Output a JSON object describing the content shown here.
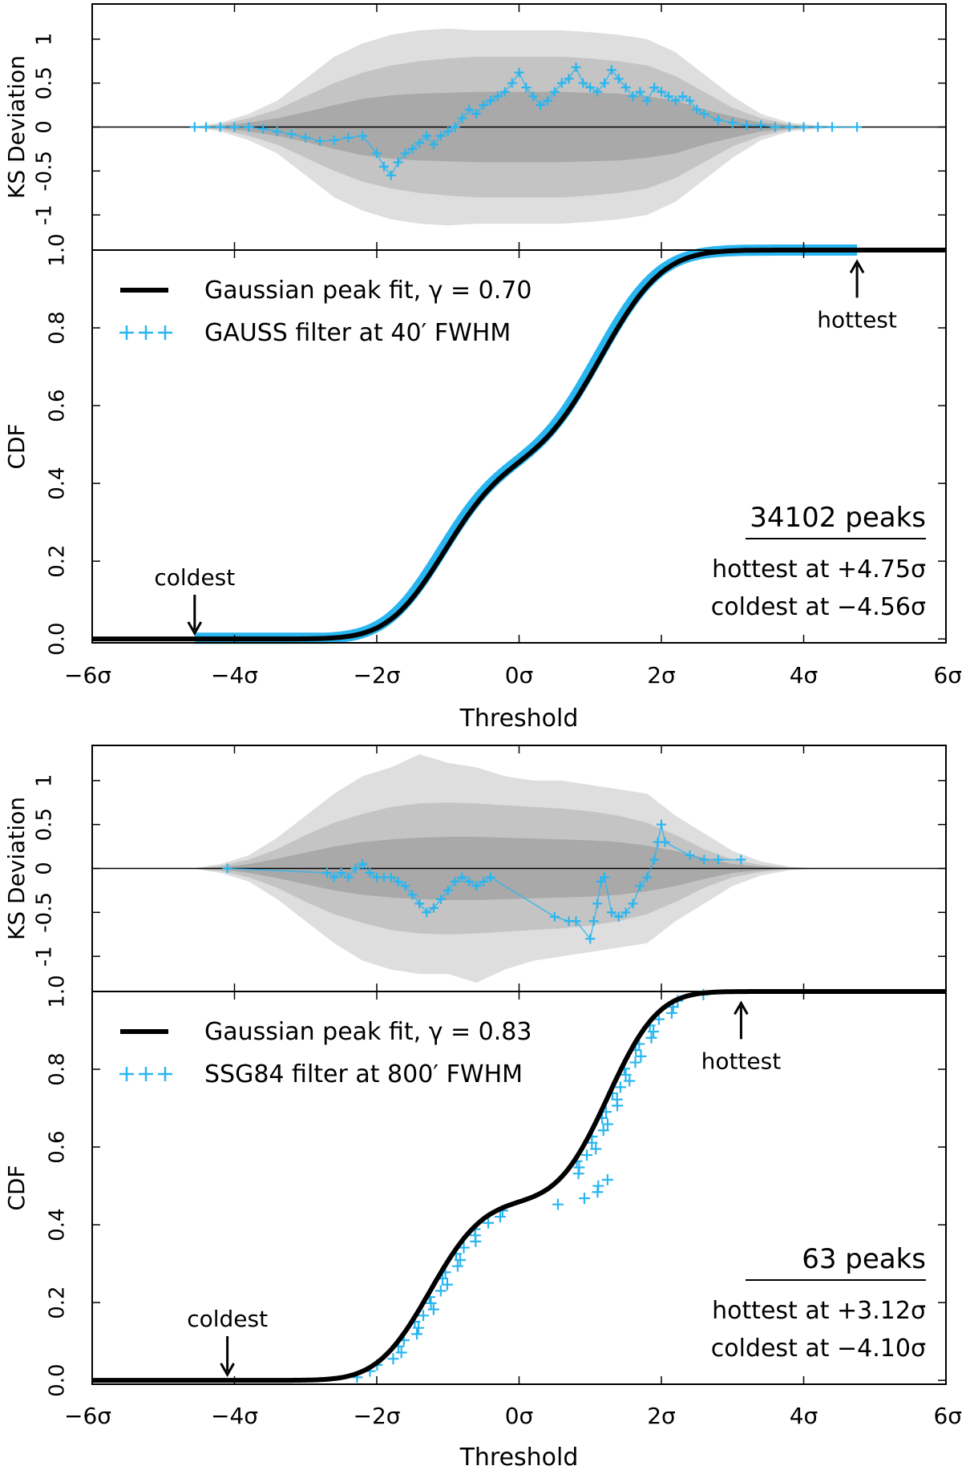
{
  "figure": {
    "colors": {
      "data": "#29b6f0",
      "fit": "#000000",
      "band_inner": "#a9a9a9",
      "band_mid": "#c4c4c4",
      "band_outer": "#dedede",
      "axis": "#000000"
    }
  },
  "chart_data": [
    {
      "type": "line",
      "panel": "top",
      "xlabel": "Threshold",
      "x_ticks": [
        "−6σ",
        "−4σ",
        "−2σ",
        "0σ",
        "2σ",
        "4σ",
        "6σ"
      ],
      "x_tick_values": [
        -6,
        -4,
        -2,
        0,
        2,
        4,
        6
      ],
      "xlim": [
        -6,
        6
      ],
      "ks": {
        "ylabel": "KS Deviation",
        "y_ticks": [
          "-1",
          "-0.5",
          "0",
          "0.5",
          "1"
        ],
        "y_tick_values": [
          -1,
          -0.5,
          0,
          0.5,
          1
        ],
        "ylim": [
          -1.4,
          1.4
        ],
        "bands_x": [
          -4.6,
          -4.2,
          -3.8,
          -3.4,
          -3.0,
          -2.6,
          -2.2,
          -1.8,
          -1.4,
          -1.0,
          -0.6,
          -0.2,
          0.2,
          0.6,
          1.0,
          1.4,
          1.8,
          2.2,
          2.6,
          3.0,
          3.4,
          3.8,
          4.2,
          4.6
        ],
        "band_outer_upper": [
          0.0,
          0.05,
          0.15,
          0.3,
          0.55,
          0.8,
          0.95,
          1.05,
          1.1,
          1.12,
          1.1,
          1.1,
          1.1,
          1.1,
          1.08,
          1.05,
          1.0,
          0.85,
          0.6,
          0.35,
          0.15,
          0.05,
          0.02,
          0.0
        ],
        "band_outer_lower": [
          0.0,
          -0.05,
          -0.15,
          -0.3,
          -0.55,
          -0.8,
          -0.95,
          -1.05,
          -1.1,
          -1.12,
          -1.1,
          -1.1,
          -1.1,
          -1.1,
          -1.08,
          -1.05,
          -1.0,
          -0.85,
          -0.6,
          -0.35,
          -0.15,
          -0.05,
          -0.02,
          0.0
        ],
        "band_mid_upper": [
          0.0,
          0.03,
          0.1,
          0.2,
          0.35,
          0.5,
          0.62,
          0.7,
          0.75,
          0.78,
          0.8,
          0.8,
          0.8,
          0.8,
          0.78,
          0.75,
          0.7,
          0.58,
          0.4,
          0.22,
          0.1,
          0.03,
          0.01,
          0.0
        ],
        "band_mid_lower": [
          0.0,
          -0.03,
          -0.1,
          -0.2,
          -0.35,
          -0.5,
          -0.62,
          -0.7,
          -0.75,
          -0.78,
          -0.8,
          -0.8,
          -0.8,
          -0.8,
          -0.78,
          -0.75,
          -0.7,
          -0.58,
          -0.4,
          -0.22,
          -0.1,
          -0.03,
          -0.01,
          0.0
        ],
        "band_inner_upper": [
          0.0,
          0.01,
          0.05,
          0.1,
          0.17,
          0.25,
          0.32,
          0.36,
          0.38,
          0.39,
          0.4,
          0.4,
          0.4,
          0.4,
          0.39,
          0.38,
          0.35,
          0.3,
          0.2,
          0.12,
          0.05,
          0.02,
          0.0,
          0.0
        ],
        "band_inner_lower": [
          0.0,
          -0.01,
          -0.05,
          -0.1,
          -0.17,
          -0.25,
          -0.32,
          -0.36,
          -0.38,
          -0.39,
          -0.4,
          -0.4,
          -0.4,
          -0.4,
          -0.39,
          -0.38,
          -0.35,
          -0.3,
          -0.2,
          -0.12,
          -0.05,
          -0.02,
          0.0,
          0.0
        ],
        "data_x": [
          -4.56,
          -4.4,
          -4.2,
          -4.0,
          -3.8,
          -3.6,
          -3.4,
          -3.2,
          -3.0,
          -2.8,
          -2.6,
          -2.4,
          -2.2,
          -2.0,
          -1.9,
          -1.8,
          -1.7,
          -1.6,
          -1.5,
          -1.4,
          -1.3,
          -1.2,
          -1.1,
          -1.0,
          -0.9,
          -0.8,
          -0.7,
          -0.6,
          -0.5,
          -0.4,
          -0.3,
          -0.2,
          -0.1,
          0.0,
          0.1,
          0.2,
          0.3,
          0.4,
          0.5,
          0.6,
          0.7,
          0.8,
          0.9,
          1.0,
          1.1,
          1.2,
          1.3,
          1.4,
          1.5,
          1.6,
          1.7,
          1.8,
          1.9,
          2.0,
          2.1,
          2.2,
          2.3,
          2.4,
          2.5,
          2.6,
          2.8,
          3.0,
          3.2,
          3.4,
          3.6,
          3.8,
          4.0,
          4.2,
          4.4,
          4.75
        ],
        "data_y": [
          0.0,
          0.0,
          0.0,
          0.0,
          0.0,
          -0.02,
          -0.05,
          -0.08,
          -0.12,
          -0.16,
          -0.15,
          -0.12,
          -0.1,
          -0.3,
          -0.45,
          -0.55,
          -0.4,
          -0.3,
          -0.25,
          -0.18,
          -0.1,
          -0.2,
          -0.1,
          -0.05,
          0.0,
          0.1,
          0.2,
          0.15,
          0.25,
          0.3,
          0.35,
          0.4,
          0.5,
          0.62,
          0.45,
          0.35,
          0.25,
          0.3,
          0.4,
          0.5,
          0.55,
          0.68,
          0.5,
          0.45,
          0.4,
          0.5,
          0.65,
          0.55,
          0.45,
          0.35,
          0.4,
          0.3,
          0.45,
          0.4,
          0.35,
          0.3,
          0.35,
          0.3,
          0.2,
          0.15,
          0.08,
          0.05,
          0.02,
          0.02,
          0.0,
          0.0,
          0.0,
          0.0,
          0.0,
          0.0
        ]
      },
      "cdf": {
        "ylabel": "CDF",
        "y_ticks": [
          "0.0",
          "0.2",
          "0.4",
          "0.6",
          "0.8",
          "1.0"
        ],
        "y_tick_values": [
          0,
          0.2,
          0.4,
          0.6,
          0.8,
          1.0
        ],
        "ylim": [
          -0.01,
          1.0
        ],
        "fit_gamma": 0.7,
        "legend": [
          "Gaussian peak fit, γ = 0.70",
          "GAUSS filter at 40′ FWHM"
        ],
        "legend_placement": "upper-left",
        "annotations": {
          "hottest_label": "hottest",
          "hottest_x": 4.75,
          "coldest_label": "coldest",
          "coldest_x": -4.56
        },
        "info": {
          "peaks": "34102 peaks",
          "hottest": "hottest at +4.75σ",
          "coldest": "coldest at −4.56σ"
        }
      }
    },
    {
      "type": "line",
      "panel": "bottom",
      "xlabel": "Threshold",
      "x_ticks": [
        "−6σ",
        "−4σ",
        "−2σ",
        "0σ",
        "2σ",
        "4σ",
        "6σ"
      ],
      "x_tick_values": [
        -6,
        -4,
        -2,
        0,
        2,
        4,
        6
      ],
      "xlim": [
        -6,
        6
      ],
      "ks": {
        "ylabel": "KS Deviation",
        "y_ticks": [
          "-1",
          "-0.5",
          "0",
          "0.5",
          "1"
        ],
        "y_tick_values": [
          -1,
          -0.5,
          0,
          0.5,
          1
        ],
        "ylim": [
          -1.4,
          1.4
        ],
        "bands_x": [
          -4.6,
          -4.2,
          -3.8,
          -3.4,
          -3.0,
          -2.6,
          -2.2,
          -1.8,
          -1.4,
          -1.0,
          -0.6,
          -0.2,
          0.2,
          0.6,
          1.0,
          1.4,
          1.8,
          2.2,
          2.6,
          3.0,
          3.4,
          3.8,
          4.2,
          4.6
        ],
        "band_outer_upper": [
          0.0,
          0.05,
          0.15,
          0.35,
          0.6,
          0.85,
          1.05,
          1.15,
          1.3,
          1.2,
          1.15,
          1.05,
          1.0,
          1.0,
          0.95,
          0.9,
          0.85,
          0.6,
          0.4,
          0.2,
          0.08,
          0.02,
          0.0,
          0.0
        ],
        "band_outer_lower": [
          0.0,
          -0.05,
          -0.15,
          -0.35,
          -0.6,
          -0.85,
          -1.05,
          -1.15,
          -1.2,
          -1.2,
          -1.3,
          -1.15,
          -1.05,
          -1.0,
          -0.95,
          -0.9,
          -0.85,
          -0.6,
          -0.4,
          -0.2,
          -0.08,
          -0.02,
          0.0,
          0.0
        ],
        "band_mid_upper": [
          0.0,
          0.03,
          0.1,
          0.22,
          0.38,
          0.52,
          0.62,
          0.7,
          0.74,
          0.75,
          0.74,
          0.72,
          0.7,
          0.68,
          0.65,
          0.6,
          0.52,
          0.38,
          0.22,
          0.1,
          0.04,
          0.01,
          0.0,
          0.0
        ],
        "band_mid_lower": [
          0.0,
          -0.03,
          -0.1,
          -0.22,
          -0.38,
          -0.52,
          -0.62,
          -0.7,
          -0.74,
          -0.75,
          -0.74,
          -0.72,
          -0.7,
          -0.68,
          -0.65,
          -0.6,
          -0.52,
          -0.38,
          -0.22,
          -0.1,
          -0.04,
          -0.01,
          0.0,
          0.0
        ],
        "band_inner_upper": [
          0.0,
          0.01,
          0.05,
          0.11,
          0.18,
          0.25,
          0.3,
          0.33,
          0.35,
          0.36,
          0.36,
          0.35,
          0.34,
          0.33,
          0.32,
          0.3,
          0.26,
          0.2,
          0.12,
          0.05,
          0.02,
          0.0,
          0.0,
          0.0
        ],
        "band_inner_lower": [
          0.0,
          -0.01,
          -0.05,
          -0.11,
          -0.18,
          -0.25,
          -0.3,
          -0.33,
          -0.35,
          -0.36,
          -0.36,
          -0.35,
          -0.34,
          -0.33,
          -0.32,
          -0.3,
          -0.26,
          -0.2,
          -0.12,
          -0.05,
          -0.02,
          0.0,
          0.0,
          0.0
        ],
        "data_x": [
          -4.1,
          -2.7,
          -2.6,
          -2.5,
          -2.4,
          -2.3,
          -2.2,
          -2.1,
          -2.0,
          -1.9,
          -1.8,
          -1.7,
          -1.6,
          -1.5,
          -1.4,
          -1.3,
          -1.2,
          -1.1,
          -1.0,
          -0.9,
          -0.8,
          -0.7,
          -0.6,
          -0.5,
          -0.4,
          0.5,
          0.7,
          0.8,
          1.0,
          1.05,
          1.1,
          1.15,
          1.2,
          1.3,
          1.4,
          1.5,
          1.6,
          1.7,
          1.8,
          1.9,
          1.95,
          2.0,
          2.05,
          2.4,
          2.6,
          2.8,
          3.12
        ],
        "data_y": [
          0.0,
          -0.05,
          -0.1,
          -0.05,
          -0.1,
          0.0,
          0.05,
          -0.05,
          -0.1,
          -0.1,
          -0.1,
          -0.15,
          -0.2,
          -0.3,
          -0.4,
          -0.5,
          -0.45,
          -0.35,
          -0.25,
          -0.15,
          -0.1,
          -0.15,
          -0.2,
          -0.15,
          -0.1,
          -0.55,
          -0.6,
          -0.6,
          -0.8,
          -0.6,
          -0.4,
          -0.15,
          -0.1,
          -0.5,
          -0.55,
          -0.5,
          -0.4,
          -0.2,
          -0.1,
          0.1,
          0.3,
          0.5,
          0.3,
          0.15,
          0.1,
          0.1,
          0.1
        ]
      },
      "cdf": {
        "ylabel": "CDF",
        "y_ticks": [
          "0.0",
          "0.2",
          "0.4",
          "0.6",
          "0.8",
          "1.0"
        ],
        "y_tick_values": [
          0,
          0.2,
          0.4,
          0.6,
          0.8,
          1.0
        ],
        "ylim": [
          -0.01,
          1.0
        ],
        "fit_gamma": 0.83,
        "legend": [
          "Gaussian peak fit, γ = 0.83",
          "SSG84 filter at 800′ FWHM"
        ],
        "legend_placement": "upper-left",
        "annotations": {
          "hottest_label": "hottest",
          "hottest_x": 3.12,
          "coldest_label": "coldest",
          "coldest_x": -4.1
        },
        "info": {
          "peaks": "63 peaks",
          "hottest": "hottest at +3.12σ",
          "coldest": "coldest at −4.10σ"
        }
      }
    }
  ]
}
